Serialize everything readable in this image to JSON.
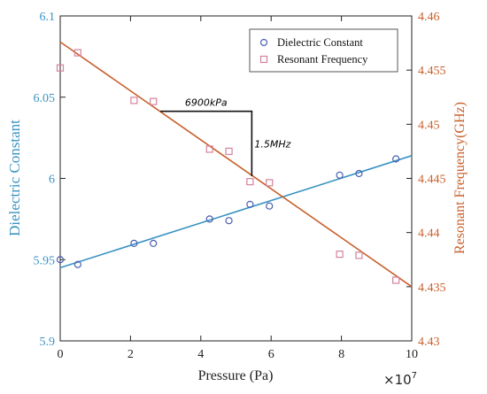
{
  "chart_data": {
    "type": "scatter",
    "x": {
      "label": "Pressure (Pa)",
      "multiplier_label": "×10",
      "multiplier_exp": "7",
      "ticks": [
        "0",
        "2",
        "4",
        "6",
        "8",
        "10"
      ],
      "range": [
        0,
        10
      ]
    },
    "y_left": {
      "label": "Dielectric Constant",
      "ticks": [
        "5.9",
        "5.95",
        "6",
        "6.05",
        "6.1"
      ],
      "range": [
        5.9,
        6.1
      ]
    },
    "y_right": {
      "label": "Resonant Frequency(GHz)",
      "ticks": [
        "4.43",
        "4.435",
        "4.44",
        "4.445",
        "4.45",
        "4.455",
        "4.46"
      ],
      "range": [
        4.43,
        4.46
      ]
    },
    "legend": {
      "placement": "top-right",
      "entries": [
        "Dielectric Constant",
        "Resonant Frequency"
      ]
    },
    "series": [
      {
        "name": "Dielectric Constant",
        "axis": "left",
        "marker": "circle",
        "color": "#4a5fb0",
        "fit_color": "#3a93c3",
        "points": [
          [
            0,
            5.95
          ],
          [
            0.5,
            5.947
          ],
          [
            2.1,
            5.96
          ],
          [
            2.65,
            5.96
          ],
          [
            4.25,
            5.975
          ],
          [
            4.8,
            5.974
          ],
          [
            5.4,
            5.984
          ],
          [
            5.95,
            5.983
          ],
          [
            7.95,
            6.002
          ],
          [
            8.5,
            6.003
          ],
          [
            9.55,
            6.012
          ]
        ],
        "fit": [
          [
            0,
            5.945
          ],
          [
            10,
            6.014
          ]
        ]
      },
      {
        "name": "Resonant Frequency",
        "axis": "right",
        "marker": "square",
        "color": "#d4829c",
        "fit_color": "#c8602c",
        "points": [
          [
            0,
            4.4552
          ],
          [
            0.5,
            4.4566
          ],
          [
            2.1,
            4.4522
          ],
          [
            2.65,
            4.4521
          ],
          [
            4.25,
            4.4477
          ],
          [
            4.8,
            4.4475
          ],
          [
            5.4,
            4.4447
          ],
          [
            5.95,
            4.4446
          ],
          [
            7.95,
            4.438
          ],
          [
            8.5,
            4.4379
          ],
          [
            9.55,
            4.4356
          ]
        ],
        "fit": [
          [
            0,
            4.4576
          ],
          [
            10,
            4.435
          ]
        ]
      }
    ],
    "annotations": {
      "horizontal_label": "6900kPa",
      "vertical_label": "1.5MHz",
      "triangle": {
        "x1": 2.85,
        "x2": 5.45,
        "y_top": 4.4512,
        "y_bottom": 4.4452
      }
    },
    "colors": {
      "left_axis": "#3a93c3",
      "right_axis": "#c8602c",
      "tick_text": "#222222"
    },
    "grid": false
  }
}
